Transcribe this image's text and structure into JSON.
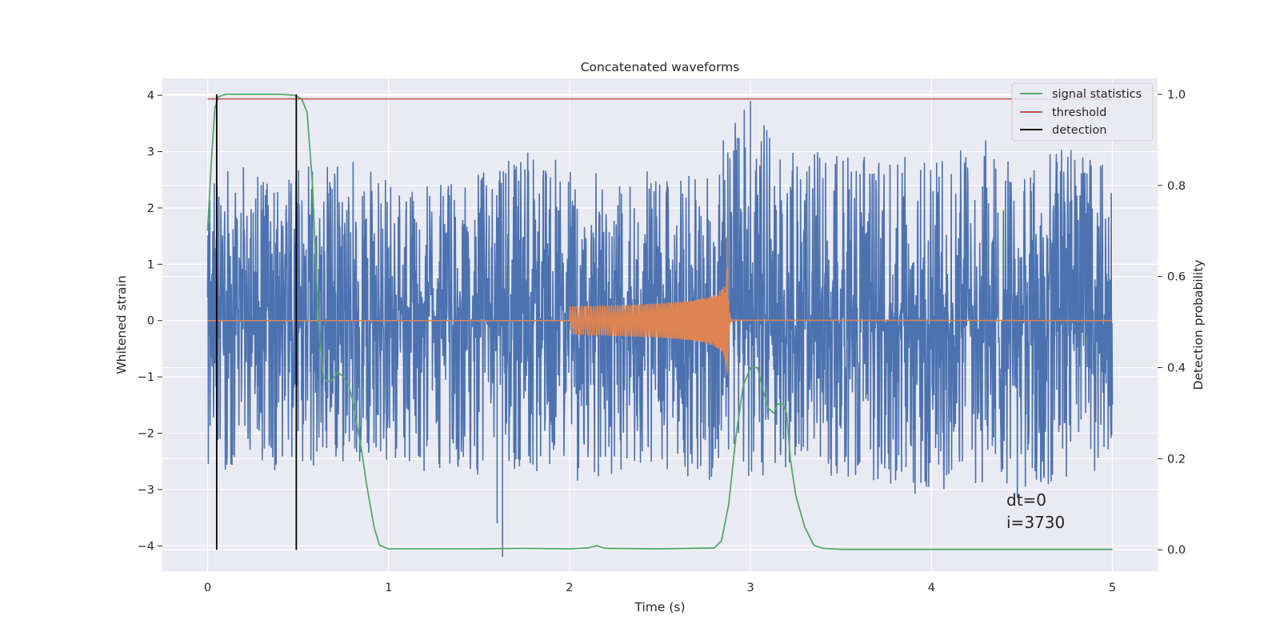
{
  "chart_data": {
    "type": "line",
    "title": "Concatenated waveforms",
    "xlabel": "Time (s)",
    "ylabel": "Whitened strain",
    "y2label": "Detection probability",
    "xlim": [
      -0.25,
      5.25
    ],
    "ylim": [
      -4.45,
      4.3
    ],
    "y2lim": [
      -0.047,
      1.035
    ],
    "xticks": [
      0,
      1,
      2,
      3,
      4,
      5
    ],
    "xtick_labels": [
      "0",
      "1",
      "2",
      "3",
      "4",
      "5"
    ],
    "yticks": [
      4,
      3,
      2,
      1,
      0,
      -1,
      -2,
      -3,
      -4
    ],
    "ytick_labels": [
      "4",
      "3",
      "2",
      "1",
      "0",
      "−1",
      "−2",
      "−3",
      "−4"
    ],
    "y2ticks": [
      1.0,
      0.8,
      0.6,
      0.4,
      0.2,
      0.0
    ],
    "y2tick_labels": [
      "1.0",
      "0.8",
      "0.6",
      "0.4",
      "0.2",
      "0.0"
    ],
    "grid": true,
    "legend_position": "top-right",
    "colors": {
      "strain": "#4c72b0",
      "template": "#dd8452",
      "statistics": "#55a868",
      "threshold": "#c44e52",
      "detection": "#000000",
      "axes_bg": "#eaeaf2",
      "grid": "#ffffff"
    },
    "strain_envelope": {
      "x": [
        0.0,
        0.25,
        0.5,
        0.75,
        1.0,
        1.25,
        1.5,
        1.75,
        2.0,
        2.25,
        2.5,
        2.75,
        3.0,
        3.25,
        3.5,
        3.75,
        4.0,
        4.25,
        4.5,
        4.75,
        5.0
      ],
      "upper": [
        2.8,
        2.7,
        2.7,
        3.0,
        2.5,
        2.4,
        2.6,
        3.0,
        2.8,
        2.5,
        2.7,
        2.8,
        3.9,
        3.1,
        2.9,
        3.0,
        2.8,
        3.2,
        2.7,
        3.1,
        2.8
      ],
      "lower": [
        -3.1,
        -2.6,
        -2.8,
        -2.5,
        -2.6,
        -2.7,
        -2.8,
        -2.6,
        -2.9,
        -2.7,
        -2.8,
        -2.9,
        -2.8,
        -2.6,
        -2.8,
        -2.9,
        -3.2,
        -3.0,
        -3.2,
        -2.9,
        -2.7
      ],
      "outliers": [
        [
          1.63,
          -4.2
        ],
        [
          1.6,
          -3.6
        ],
        [
          3.0,
          3.9
        ],
        [
          2.85,
          3.2
        ],
        [
          4.3,
          3.2
        ]
      ]
    },
    "template_waveform": {
      "start": 2.0,
      "merger": 2.87,
      "end": 2.9,
      "amp_start": 0.25,
      "amp_peak": 1.5,
      "amp_min": -0.95
    },
    "series": [
      {
        "name": "signal statistics",
        "x": [
          0.0,
          0.02,
          0.04,
          0.06,
          0.1,
          0.2,
          0.3,
          0.4,
          0.48,
          0.52,
          0.55,
          0.58,
          0.6,
          0.62,
          0.64,
          0.66,
          0.68,
          0.7,
          0.72,
          0.75,
          0.78,
          0.8,
          0.85,
          0.88,
          0.92,
          0.95,
          1.0,
          1.5,
          1.75,
          2.0,
          2.1,
          2.15,
          2.2,
          2.5,
          2.8,
          2.84,
          2.88,
          2.92,
          2.96,
          3.0,
          3.04,
          3.07,
          3.1,
          3.13,
          3.15,
          3.18,
          3.2,
          3.22,
          3.25,
          3.3,
          3.35,
          3.4,
          3.5,
          4.0,
          4.5,
          5.0
        ],
        "values": [
          0.7,
          0.85,
          0.97,
          0.995,
          1.0,
          1.0,
          1.0,
          1.0,
          0.998,
          0.99,
          0.96,
          0.8,
          0.6,
          0.46,
          0.38,
          0.37,
          0.37,
          0.38,
          0.39,
          0.38,
          0.36,
          0.33,
          0.22,
          0.14,
          0.05,
          0.01,
          0.002,
          0.002,
          0.003,
          0.002,
          0.004,
          0.009,
          0.003,
          0.002,
          0.004,
          0.02,
          0.1,
          0.25,
          0.36,
          0.4,
          0.4,
          0.35,
          0.31,
          0.3,
          0.32,
          0.32,
          0.3,
          0.2,
          0.12,
          0.05,
          0.01,
          0.003,
          0.001,
          0.001,
          0.001,
          0.001
        ]
      },
      {
        "name": "threshold",
        "x": [
          0.0,
          5.0
        ],
        "values": [
          0.99,
          0.99
        ]
      },
      {
        "name": "detection",
        "x": [
          0.05,
          0.49
        ],
        "values": [
          1.0,
          1.0
        ]
      }
    ],
    "annotations": [
      "dt=0",
      "i=3730"
    ]
  }
}
